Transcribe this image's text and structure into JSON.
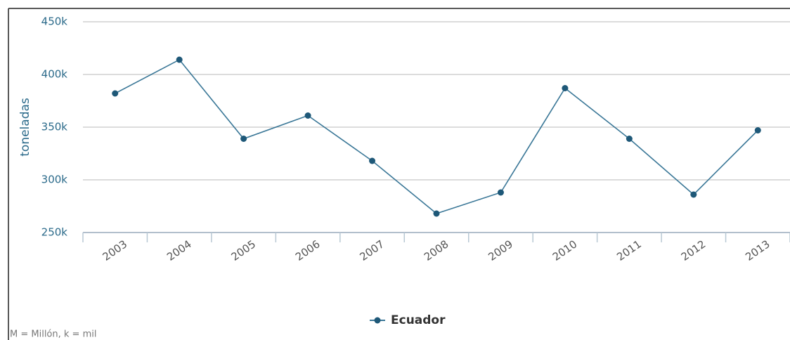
{
  "chart_data": {
    "type": "line",
    "y_label": "toneladas",
    "footnote": "M = Millón, k = mil",
    "categories": [
      "2003",
      "2004",
      "2005",
      "2006",
      "2007",
      "2008",
      "2009",
      "2010",
      "2011",
      "2012",
      "2013"
    ],
    "series": [
      {
        "name": "Ecuador",
        "color": "#3a7797",
        "marker_color": "#1e5878",
        "values": [
          382000,
          414000,
          339000,
          361000,
          318000,
          268000,
          288000,
          387000,
          339000,
          286000,
          347000
        ]
      }
    ],
    "ylim": [
      250000,
      450000
    ],
    "yticks": [
      {
        "value": 250000,
        "label": "250k"
      },
      {
        "value": 300000,
        "label": "300k"
      },
      {
        "value": 350000,
        "label": "350k"
      },
      {
        "value": 400000,
        "label": "400k"
      },
      {
        "value": 450000,
        "label": "450k"
      }
    ],
    "grid": true,
    "legend": "bottom"
  }
}
